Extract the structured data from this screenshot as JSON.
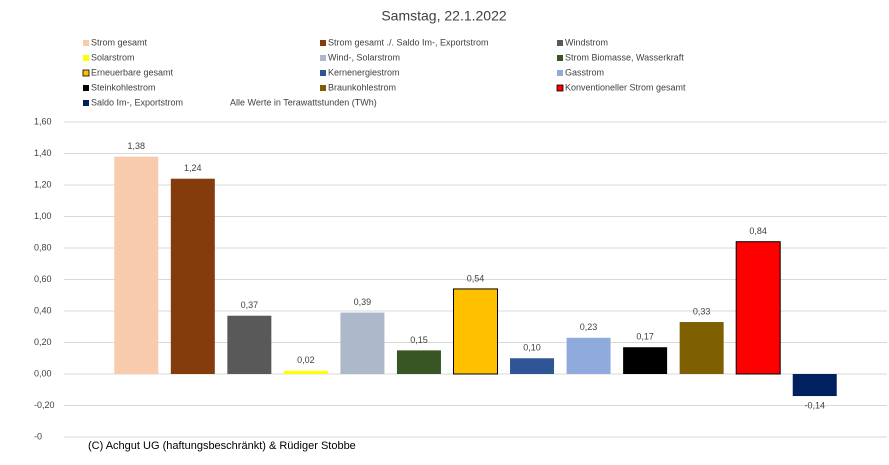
{
  "chart_data": {
    "type": "bar",
    "title": "Samstag, 22.1.2022",
    "annotation": "Alle Werte in Terawattstunden (TWh)",
    "footer": "(C) Achgut UG (haftungsbeschränkt) & Rüdiger Stobbe",
    "ylim": [
      -0.4,
      1.6
    ],
    "yticks": [
      {
        "value": 1.6,
        "label": "1,60"
      },
      {
        "value": 1.4,
        "label": "1,40"
      },
      {
        "value": 1.2,
        "label": "1,20"
      },
      {
        "value": 1.0,
        "label": "1,00"
      },
      {
        "value": 0.8,
        "label": "0,80"
      },
      {
        "value": 0.6,
        "label": "0,60"
      },
      {
        "value": 0.4,
        "label": "0,40"
      },
      {
        "value": 0.2,
        "label": "0,20"
      },
      {
        "value": 0,
        "label": "0,00"
      },
      {
        "value": -0.2,
        "label": "-0,20"
      },
      {
        "value": -0.4,
        "label": "-0"
      }
    ],
    "grid": true,
    "legend": "top",
    "series": [
      {
        "name": "Strom gesamt",
        "color": "#f8cbad",
        "values": [
          1.38
        ],
        "value_labels": [
          "1,38"
        ]
      },
      {
        "name": "Strom gesamt ./. Saldo Im-, Exportstrom",
        "color": "#843c0c",
        "values": [
          1.24
        ],
        "value_labels": [
          "1,24"
        ]
      },
      {
        "name": "Windstrom",
        "color": "#595959",
        "values": [
          0.37
        ],
        "value_labels": [
          "0,37"
        ]
      },
      {
        "name": "Solarstrom",
        "color": "#ffff00",
        "values": [
          0.02
        ],
        "value_labels": [
          "0,02"
        ]
      },
      {
        "name": "Wind-, Solarstrom",
        "color": "#adb9ca",
        "values": [
          0.39
        ],
        "value_labels": [
          "0,39"
        ]
      },
      {
        "name": "Strom Biomasse, Wasserkraft",
        "color": "#375623",
        "values": [
          0.15
        ],
        "value_labels": [
          "0,15"
        ]
      },
      {
        "name": "Erneuerbare gesamt",
        "color": "#ffc000",
        "edgecolor": "#000000",
        "values": [
          0.54
        ],
        "value_labels": [
          "0,54"
        ]
      },
      {
        "name": "Kernenergiestrom",
        "color": "#2f5597",
        "values": [
          0.1
        ],
        "value_labels": [
          "0,10"
        ]
      },
      {
        "name": "Gasstrom",
        "color": "#8faadc",
        "values": [
          0.23
        ],
        "value_labels": [
          "0,23"
        ]
      },
      {
        "name": "Steinkohlestrom",
        "color": "#000000",
        "values": [
          0.17
        ],
        "value_labels": [
          "0,17"
        ]
      },
      {
        "name": "Braunkohlestrom",
        "color": "#7f6000",
        "values": [
          0.33
        ],
        "value_labels": [
          "0,33"
        ]
      },
      {
        "name": "Konventioneller Strom gesamt",
        "color": "#ff0000",
        "edgecolor": "#000000",
        "values": [
          0.84
        ],
        "value_labels": [
          "0,84"
        ]
      },
      {
        "name": "Saldo Im-, Exportstrom",
        "color": "#002060",
        "values": [
          -0.14
        ],
        "value_labels": [
          "-0,14"
        ]
      }
    ]
  }
}
